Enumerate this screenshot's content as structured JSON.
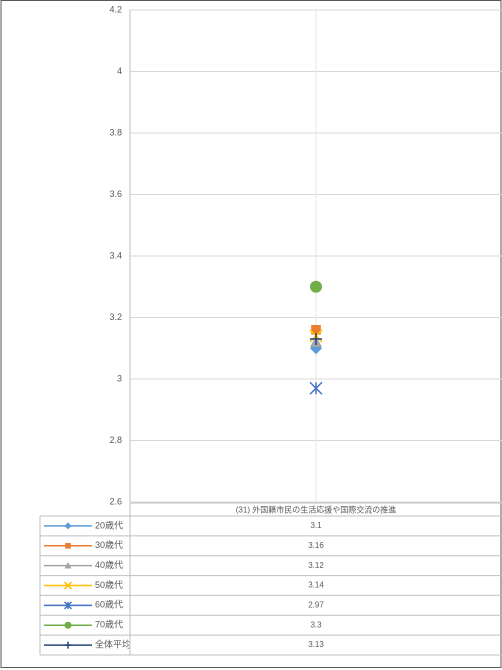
{
  "chart_data": {
    "type": "line",
    "categories": [
      "(31) 外国籍市民の生活応援や国際交流の推進"
    ],
    "series": [
      {
        "name": "20歳代",
        "color": "#5b9bd5",
        "marker": "diamond",
        "values": [
          3.1
        ]
      },
      {
        "name": "30歳代",
        "color": "#ed7d31",
        "marker": "square",
        "values": [
          3.16
        ]
      },
      {
        "name": "40歳代",
        "color": "#a5a5a5",
        "marker": "triangle",
        "values": [
          3.12
        ]
      },
      {
        "name": "50歳代",
        "color": "#ffc000",
        "marker": "x",
        "values": [
          3.14
        ]
      },
      {
        "name": "60歳代",
        "color": "#4472c4",
        "marker": "star",
        "values": [
          2.97
        ]
      },
      {
        "name": "70歳代",
        "color": "#70ad47",
        "marker": "circle",
        "values": [
          3.3
        ]
      },
      {
        "name": "全体平均",
        "color": "#264478",
        "marker": "plus",
        "values": [
          3.13
        ]
      }
    ],
    "ylim": [
      2.6,
      4.2
    ],
    "yticks": [
      2.6,
      2.8,
      3,
      3.2,
      3.4,
      3.6,
      3.8,
      4,
      4.2
    ],
    "grid": true,
    "data_table": true
  }
}
